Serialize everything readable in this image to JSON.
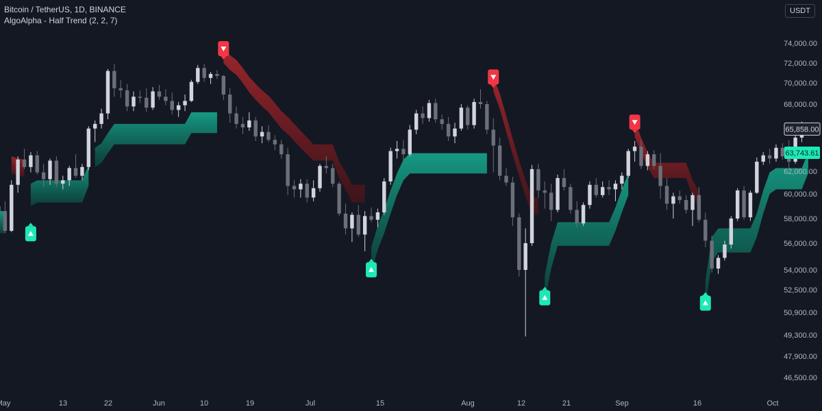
{
  "header": {
    "symbol_line": "Bitcoin / TetherUS, 1D, BINANCE",
    "indicator_line": "AlgoAlpha - Half Trend (2, 2, 7)"
  },
  "currency_button": "USDT",
  "price_labels": {
    "last_price": "65,858.00",
    "indicator_price": "63,743.61"
  },
  "colors": {
    "background": "#141823",
    "bull": "#1de9b6",
    "bear": "#f23645",
    "bull_band": "#0f6b58",
    "bear_band": "#7a1f24",
    "candle_up": "#d1d4dc",
    "candle_down": "#6b6f7a"
  },
  "chart_data": {
    "type": "candlestick",
    "interval": "1D",
    "y_axis_ticks": [
      "74,000.00",
      "72,000.00",
      "70,000.00",
      "68,000.00",
      "66,000.00",
      "64,000.00",
      "62,000.00",
      "60,000.00",
      "58,000.00",
      "56,000.00",
      "54,000.00",
      "52,500.00",
      "50,900.00",
      "49,300.00",
      "47,900.00",
      "46,500.00"
    ],
    "x_axis_ticks": [
      "May",
      "13",
      "22",
      "Jun",
      "10",
      "19",
      "Jul",
      "15",
      "Aug",
      "12",
      "21",
      "Sep",
      "16",
      "Oct"
    ],
    "ohlc": [
      [
        59000,
        60400,
        57600,
        58600
      ],
      [
        58600,
        59400,
        56800,
        57000
      ],
      [
        57000,
        61200,
        56900,
        60800
      ],
      [
        60800,
        63400,
        60100,
        63100
      ],
      [
        63100,
        64100,
        62200,
        62400
      ],
      [
        62400,
        63800,
        61900,
        63500
      ],
      [
        63500,
        63900,
        61700,
        61900
      ],
      [
        61900,
        62700,
        60600,
        61300
      ],
      [
        61300,
        63200,
        60800,
        63000
      ],
      [
        63000,
        63400,
        60600,
        60900
      ],
      [
        60900,
        61600,
        60400,
        61200
      ],
      [
        61200,
        62500,
        60700,
        62300
      ],
      [
        62300,
        63600,
        61400,
        61600
      ],
      [
        61600,
        62700,
        61200,
        62400
      ],
      [
        62400,
        66100,
        62100,
        65900
      ],
      [
        65900,
        66600,
        64700,
        66300
      ],
      [
        66300,
        67600,
        65900,
        67200
      ],
      [
        67200,
        71400,
        66700,
        71200
      ],
      [
        71200,
        71900,
        68700,
        69500
      ],
      [
        69500,
        70300,
        68600,
        69300
      ],
      [
        69300,
        69900,
        67400,
        67800
      ],
      [
        67800,
        69200,
        67400,
        68700
      ],
      [
        68700,
        69300,
        68100,
        68600
      ],
      [
        68600,
        69500,
        67300,
        67700
      ],
      [
        67700,
        69600,
        67500,
        69200
      ],
      [
        69200,
        69800,
        68400,
        68700
      ],
      [
        68700,
        69400,
        67900,
        68300
      ],
      [
        68300,
        69100,
        67100,
        67500
      ],
      [
        67500,
        68200,
        66900,
        67900
      ],
      [
        67900,
        68900,
        67400,
        68300
      ],
      [
        68300,
        70300,
        68200,
        70100
      ],
      [
        70100,
        71800,
        69900,
        71500
      ],
      [
        71500,
        71900,
        70100,
        70500
      ],
      [
        70500,
        71100,
        69900,
        70900
      ],
      [
        70900,
        71300,
        70400,
        70700
      ],
      [
        70700,
        70800,
        68400,
        68900
      ],
      [
        68900,
        69500,
        66400,
        67200
      ],
      [
        67200,
        67800,
        65900,
        66300
      ],
      [
        66300,
        66900,
        65400,
        66000
      ],
      [
        66000,
        67300,
        65700,
        66600
      ],
      [
        66600,
        66900,
        64800,
        65200
      ],
      [
        65200,
        66100,
        64600,
        65600
      ],
      [
        65600,
        66200,
        64700,
        64900
      ],
      [
        64900,
        65300,
        64000,
        64500
      ],
      [
        64500,
        64900,
        63200,
        63600
      ],
      [
        63600,
        64200,
        59900,
        60700
      ],
      [
        60700,
        61200,
        59700,
        60400
      ],
      [
        60400,
        61300,
        59700,
        60900
      ],
      [
        60900,
        61300,
        59300,
        59700
      ],
      [
        59700,
        61200,
        59400,
        60500
      ],
      [
        60500,
        62700,
        60200,
        62500
      ],
      [
        62500,
        63400,
        61800,
        62300
      ],
      [
        62300,
        62700,
        60600,
        60900
      ],
      [
        60900,
        61100,
        58200,
        58400
      ],
      [
        58400,
        59200,
        56700,
        57200
      ],
      [
        57200,
        58500,
        56100,
        58300
      ],
      [
        58300,
        59100,
        56500,
        56700
      ],
      [
        56700,
        58600,
        55400,
        58200
      ],
      [
        58200,
        58900,
        57700,
        57900
      ],
      [
        57900,
        58800,
        57300,
        58500
      ],
      [
        58500,
        61400,
        58300,
        61100
      ],
      [
        61100,
        64200,
        60800,
        63900
      ],
      [
        63900,
        64800,
        63200,
        64100
      ],
      [
        64100,
        64900,
        63000,
        63600
      ],
      [
        63600,
        66200,
        63400,
        65800
      ],
      [
        65800,
        67500,
        65400,
        67200
      ],
      [
        67200,
        67800,
        66300,
        66800
      ],
      [
        66800,
        68400,
        66500,
        68100
      ],
      [
        68100,
        68500,
        66400,
        66700
      ],
      [
        66700,
        67100,
        65800,
        66300
      ],
      [
        66300,
        66900,
        64800,
        65200
      ],
      [
        65200,
        66400,
        64600,
        65900
      ],
      [
        65900,
        68000,
        65700,
        67700
      ],
      [
        67700,
        67900,
        65800,
        66200
      ],
      [
        66200,
        68500,
        65900,
        68200
      ],
      [
        68200,
        69400,
        67600,
        68000
      ],
      [
        68000,
        68300,
        65400,
        65800
      ],
      [
        65800,
        66800,
        61900,
        64400
      ],
      [
        64400,
        65100,
        61200,
        61600
      ],
      [
        61600,
        62300,
        60700,
        61000
      ],
      [
        61000,
        61500,
        57400,
        58100
      ],
      [
        58100,
        58400,
        53500,
        54000
      ],
      [
        54000,
        57200,
        49200,
        56000
      ],
      [
        56000,
        62600,
        55800,
        62200
      ],
      [
        62200,
        62700,
        59700,
        60300
      ],
      [
        60300,
        61100,
        58800,
        60100
      ],
      [
        60100,
        60900,
        57800,
        58700
      ],
      [
        58700,
        61700,
        58500,
        61400
      ],
      [
        61400,
        62200,
        60300,
        60600
      ],
      [
        60600,
        60900,
        58400,
        58700
      ],
      [
        58700,
        59400,
        57300,
        57600
      ],
      [
        57600,
        59300,
        57400,
        59100
      ],
      [
        59100,
        61100,
        58800,
        60800
      ],
      [
        60800,
        61400,
        59700,
        59900
      ],
      [
        59900,
        61100,
        59700,
        60600
      ],
      [
        60600,
        61200,
        59900,
        60400
      ],
      [
        60400,
        61200,
        59400,
        60900
      ],
      [
        60900,
        61900,
        60400,
        61600
      ],
      [
        61600,
        64100,
        61400,
        63900
      ],
      [
        63900,
        64800,
        62900,
        64300
      ],
      [
        64300,
        64900,
        62200,
        62500
      ],
      [
        62500,
        63900,
        62100,
        63600
      ],
      [
        63600,
        64000,
        62200,
        62500
      ],
      [
        62500,
        63700,
        59600,
        60700
      ],
      [
        60700,
        61400,
        58700,
        59200
      ],
      [
        59200,
        60100,
        58000,
        59800
      ],
      [
        59800,
        60300,
        59200,
        59500
      ],
      [
        59500,
        59900,
        58400,
        58700
      ],
      [
        58700,
        60100,
        57400,
        59900
      ],
      [
        59900,
        60600,
        57700,
        57900
      ],
      [
        57900,
        58500,
        55700,
        56200
      ],
      [
        56200,
        56600,
        53800,
        54100
      ],
      [
        54100,
        55100,
        53700,
        54900
      ],
      [
        54900,
        56200,
        54700,
        55900
      ],
      [
        55900,
        58200,
        55600,
        58000
      ],
      [
        58000,
        60500,
        57800,
        60300
      ],
      [
        60300,
        60700,
        57900,
        58100
      ],
      [
        58100,
        60300,
        57800,
        60100
      ],
      [
        60100,
        63300,
        60000,
        62900
      ],
      [
        62900,
        63800,
        62600,
        63500
      ],
      [
        63500,
        64100,
        62700,
        63200
      ],
      [
        63200,
        64500,
        62900,
        64200
      ],
      [
        64200,
        64600,
        63100,
        63400
      ],
      [
        63400,
        64900,
        62200,
        62900
      ],
      [
        62900,
        65300,
        62700,
        65100
      ],
      [
        65100,
        66500,
        64700,
        66000
      ],
      [
        66000,
        66200,
        65500,
        65858
      ]
    ],
    "half_trend_segments": [
      {
        "direction": "bull",
        "start": 0,
        "end": 1,
        "values": [
          58600,
          58600
        ],
        "band_width": 1800
      },
      {
        "direction": "bear",
        "start": 2,
        "end": 4,
        "values": [
          61800,
          61600,
          61500
        ],
        "band_width": 1600
      },
      {
        "direction": "bull",
        "start": 5,
        "end": 14,
        "values": [
          60900,
          61200,
          61200,
          61200,
          61200,
          61200,
          61200,
          61200,
          61200,
          62600
        ],
        "band_width": 1900
      },
      {
        "direction": "bull",
        "start": 15,
        "end": 34,
        "values": [
          64200,
          64600,
          65500,
          66300,
          66300,
          66300,
          66300,
          66300,
          66300,
          66300,
          66300,
          66300,
          66300,
          66300,
          66300,
          67300,
          67300,
          67300,
          67300,
          67300
        ],
        "band_width": 1800
      },
      {
        "direction": "bear",
        "start": 35,
        "end": 57,
        "values": [
          72000,
          71300,
          70800,
          70000,
          69100,
          68400,
          67800,
          67300,
          66600,
          65900,
          65400,
          64800,
          64200,
          63600,
          63000,
          63000,
          63000,
          63000,
          61400,
          60400,
          59300,
          59300,
          59300
        ],
        "band_width": 1500
      },
      {
        "direction": "bull",
        "start": 58,
        "end": 76,
        "values": [
          55700,
          57400,
          58700,
          60300,
          61800,
          63100,
          63700,
          63700,
          63700,
          63700,
          63700,
          63700,
          63700,
          63700,
          63700,
          63700,
          63700,
          63700,
          63700
        ],
        "band_width": 1900
      },
      {
        "direction": "bear",
        "start": 77,
        "end": 84,
        "values": [
          69200,
          67600,
          65600,
          63600,
          61600,
          59800,
          58300,
          58300
        ],
        "band_width": 1400
      },
      {
        "direction": "bull",
        "start": 85,
        "end": 98,
        "values": [
          53600,
          56000,
          57700,
          57700,
          57700,
          57700,
          57700,
          57700,
          57700,
          57700,
          57700,
          58900,
          60400,
          61800
        ],
        "band_width": 1900
      },
      {
        "direction": "bear",
        "start": 99,
        "end": 109,
        "values": [
          65200,
          63700,
          62400,
          61400,
          61400,
          61400,
          61400,
          61400,
          61400,
          59800,
          58800
        ],
        "band_width": 1400
      },
      {
        "direction": "bull",
        "start": 110,
        "end": 126,
        "values": [
          53200,
          56500,
          57200,
          57200,
          57200,
          57200,
          57200,
          57200,
          58400,
          60300,
          61900,
          62300,
          62300,
          62300,
          62300,
          62300,
          63743.61
        ],
        "band_width": 1900
      }
    ],
    "signals": [
      {
        "type": "buy",
        "index": 5,
        "value": 58600
      },
      {
        "type": "sell",
        "index": 35,
        "value": 72000
      },
      {
        "type": "buy",
        "index": 58,
        "value": 55700
      },
      {
        "type": "sell",
        "index": 77,
        "value": 69200
      },
      {
        "type": "buy",
        "index": 85,
        "value": 53600
      },
      {
        "type": "sell",
        "index": 99,
        "value": 65200
      },
      {
        "type": "buy",
        "index": 110,
        "value": 53200
      }
    ]
  }
}
